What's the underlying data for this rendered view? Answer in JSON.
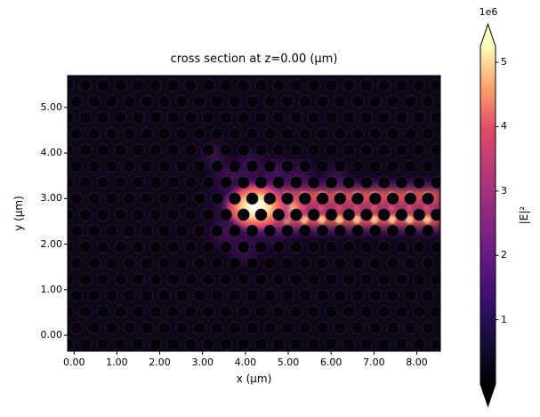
{
  "chart_data": {
    "type": "heatmap",
    "title": "cross section at z=0.00 (μm)",
    "xlabel": "x (μm)",
    "ylabel": "y (μm)",
    "xlim": [
      -0.15,
      8.55
    ],
    "ylim": [
      -0.35,
      5.7
    ],
    "xtick_values": [
      0,
      1,
      2,
      3,
      4,
      5,
      6,
      7,
      8
    ],
    "xtick_labels": [
      "0.00",
      "1.00",
      "2.00",
      "3.00",
      "4.00",
      "5.00",
      "6.00",
      "7.00",
      "8.00"
    ],
    "ytick_values": [
      0,
      1,
      2,
      3,
      4,
      5
    ],
    "ytick_labels": [
      "0.00",
      "1.00",
      "2.00",
      "3.00",
      "4.00",
      "5.00"
    ],
    "grid": false,
    "colormap": "magma",
    "colormap_stops": [
      [
        0,
        "#000004"
      ],
      [
        0.125,
        "#140e36"
      ],
      [
        0.25,
        "#3b0f70"
      ],
      [
        0.375,
        "#641a80"
      ],
      [
        0.5,
        "#8c2981"
      ],
      [
        0.625,
        "#b73779"
      ],
      [
        0.75,
        "#de4968"
      ],
      [
        0.875,
        "#fe9f6d"
      ],
      [
        0.94,
        "#fecf92"
      ],
      [
        1,
        "#fcfdbf"
      ]
    ],
    "colorbar": {
      "scale_label": "1e6",
      "axis_label": "|E|²",
      "tick_values": [
        1,
        2,
        3,
        4,
        5
      ],
      "tick_labels": [
        "1",
        "2",
        "3",
        "4",
        "5"
      ],
      "range_1e6": [
        0,
        5.25
      ],
      "extend": "both"
    },
    "field_features": {
      "description": "|E|² field of a photonic-crystal membrane: dark triangular lattice of holes over near-zero field, bright source hotspot near (4.2, 2.8) μm, and a guided-mode streak extending right to the plot edge",
      "lattice": {
        "pitch_um": 0.41,
        "hole_radius_um": 0.135
      },
      "hotspot": {
        "x": 4.25,
        "y": 2.82,
        "rx": 0.85,
        "ry": 0.6,
        "peak_1e6": 5.2
      },
      "secondary_blob": {
        "x": 5.05,
        "y": 2.8,
        "rx": 0.45,
        "ry": 0.38,
        "value_1e6": 3.5
      },
      "waveguide_streak": {
        "x_start": 3.95,
        "x_end": 8.55,
        "y_center": 2.8,
        "half_width": 0.72,
        "lobe_y": [
          2.54,
          3.06
        ],
        "value_1e6": 2.5
      },
      "scatter_plume": [
        [
          3.6,
          3.5
        ],
        [
          3.25,
          3.95
        ],
        [
          4.1,
          3.75
        ],
        [
          4.75,
          3.6
        ],
        [
          3.5,
          2.2
        ],
        [
          3.95,
          1.85
        ],
        [
          5.3,
          3.55
        ],
        [
          6.1,
          3.45
        ]
      ]
    }
  }
}
